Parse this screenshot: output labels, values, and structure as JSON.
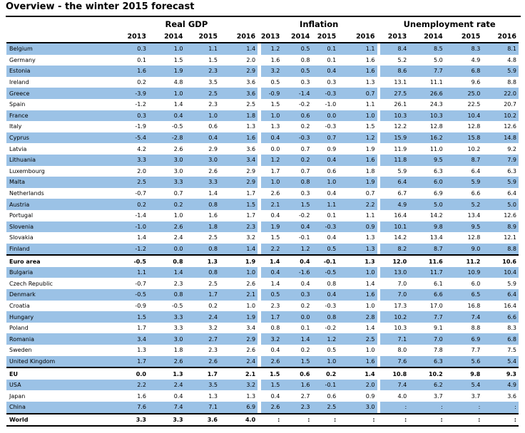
{
  "title": "Overview - the winter 2015 forecast",
  "groups": [
    "Real GDP",
    "Inflation",
    "Unemployment rate"
  ],
  "years": {
    "gdp": [
      "2013",
      "2014",
      "2015",
      "2016"
    ],
    "inflation": [
      "2013",
      "2014",
      "2015",
      "2016"
    ],
    "unemployment": [
      "2013",
      "2014",
      "2015",
      "2016"
    ]
  },
  "rows": [
    {
      "country": "Belgium",
      "style": "hl",
      "gdp": [
        "0.3",
        "1.0",
        "1.1",
        "1.4"
      ],
      "inf": [
        "1.2",
        "0.5",
        "0.1",
        "1.1"
      ],
      "unemp": [
        "8.4",
        "8.5",
        "8.3",
        "8.1"
      ]
    },
    {
      "country": "Germany",
      "style": "plain",
      "gdp": [
        "0.1",
        "1.5",
        "1.5",
        "2.0"
      ],
      "inf": [
        "1.6",
        "0.8",
        "0.1",
        "1.6"
      ],
      "unemp": [
        "5.2",
        "5.0",
        "4.9",
        "4.8"
      ]
    },
    {
      "country": "Estonia",
      "style": "hl",
      "gdp": [
        "1.6",
        "1.9",
        "2.3",
        "2.9"
      ],
      "inf": [
        "3.2",
        "0.5",
        "0.4",
        "1.6"
      ],
      "unemp": [
        "8.6",
        "7.7",
        "6.8",
        "5.9"
      ]
    },
    {
      "country": "Ireland",
      "style": "plain",
      "gdp": [
        "0.2",
        "4.8",
        "3.5",
        "3.6"
      ],
      "inf": [
        "0.5",
        "0.3",
        "0.3",
        "1.3"
      ],
      "unemp": [
        "13.1",
        "11.1",
        "9.6",
        "8.8"
      ]
    },
    {
      "country": "Greece",
      "style": "hl",
      "gdp": [
        "-3.9",
        "1.0",
        "2.5",
        "3.6"
      ],
      "inf": [
        "-0.9",
        "-1.4",
        "-0.3",
        "0.7"
      ],
      "unemp": [
        "27.5",
        "26.6",
        "25.0",
        "22.0"
      ]
    },
    {
      "country": "Spain",
      "style": "plain",
      "gdp": [
        "-1.2",
        "1.4",
        "2.3",
        "2.5"
      ],
      "inf": [
        "1.5",
        "-0.2",
        "-1.0",
        "1.1"
      ],
      "unemp": [
        "26.1",
        "24.3",
        "22.5",
        "20.7"
      ]
    },
    {
      "country": "France",
      "style": "hl",
      "gdp": [
        "0.3",
        "0.4",
        "1.0",
        "1.8"
      ],
      "inf": [
        "1.0",
        "0.6",
        "0.0",
        "1.0"
      ],
      "unemp": [
        "10.3",
        "10.3",
        "10.4",
        "10.2"
      ]
    },
    {
      "country": "Italy",
      "style": "plain",
      "gdp": [
        "-1.9",
        "-0.5",
        "0.6",
        "1.3"
      ],
      "inf": [
        "1.3",
        "0.2",
        "-0.3",
        "1.5"
      ],
      "unemp": [
        "12.2",
        "12.8",
        "12.8",
        "12.6"
      ]
    },
    {
      "country": "Cyprus",
      "style": "hl",
      "gdp": [
        "-5.4",
        "-2.8",
        "0.4",
        "1.6"
      ],
      "inf": [
        "0.4",
        "-0.3",
        "0.7",
        "1.2"
      ],
      "unemp": [
        "15.9",
        "16.2",
        "15.8",
        "14.8"
      ]
    },
    {
      "country": "Latvia",
      "style": "plain",
      "gdp": [
        "4.2",
        "2.6",
        "2.9",
        "3.6"
      ],
      "inf": [
        "0.0",
        "0.7",
        "0.9",
        "1.9"
      ],
      "unemp": [
        "11.9",
        "11.0",
        "10.2",
        "9.2"
      ]
    },
    {
      "country": "Lithuania",
      "style": "hl",
      "gdp": [
        "3.3",
        "3.0",
        "3.0",
        "3.4"
      ],
      "inf": [
        "1.2",
        "0.2",
        "0.4",
        "1.6"
      ],
      "unemp": [
        "11.8",
        "9.5",
        "8.7",
        "7.9"
      ]
    },
    {
      "country": "Luxembourg",
      "style": "plain",
      "gdp": [
        "2.0",
        "3.0",
        "2.6",
        "2.9"
      ],
      "inf": [
        "1.7",
        "0.7",
        "0.6",
        "1.8"
      ],
      "unemp": [
        "5.9",
        "6.3",
        "6.4",
        "6.3"
      ]
    },
    {
      "country": "Malta",
      "style": "hl",
      "gdp": [
        "2.5",
        "3.3",
        "3.3",
        "2.9"
      ],
      "inf": [
        "1.0",
        "0.8",
        "1.0",
        "1.9"
      ],
      "unemp": [
        "6.4",
        "6.0",
        "5.9",
        "5.9"
      ]
    },
    {
      "country": "Netherlands",
      "style": "plain",
      "gdp": [
        "-0.7",
        "0.7",
        "1.4",
        "1.7"
      ],
      "inf": [
        "2.6",
        "0.3",
        "0.4",
        "0.7"
      ],
      "unemp": [
        "6.7",
        "6.9",
        "6.6",
        "6.4"
      ]
    },
    {
      "country": "Austria",
      "style": "hl",
      "gdp": [
        "0.2",
        "0.2",
        "0.8",
        "1.5"
      ],
      "inf": [
        "2.1",
        "1.5",
        "1.1",
        "2.2"
      ],
      "unemp": [
        "4.9",
        "5.0",
        "5.2",
        "5.0"
      ]
    },
    {
      "country": "Portugal",
      "style": "plain",
      "gdp": [
        "-1.4",
        "1.0",
        "1.6",
        "1.7"
      ],
      "inf": [
        "0.4",
        "-0.2",
        "0.1",
        "1.1"
      ],
      "unemp": [
        "16.4",
        "14.2",
        "13.4",
        "12.6"
      ]
    },
    {
      "country": "Slovenia",
      "style": "hl",
      "gdp": [
        "-1.0",
        "2.6",
        "1.8",
        "2.3"
      ],
      "inf": [
        "1.9",
        "0.4",
        "-0.3",
        "0.9"
      ],
      "unemp": [
        "10.1",
        "9.8",
        "9.5",
        "8.9"
      ]
    },
    {
      "country": "Slovakia",
      "style": "plain",
      "gdp": [
        "1.4",
        "2.4",
        "2.5",
        "3.2"
      ],
      "inf": [
        "1.5",
        "-0.1",
        "0.4",
        "1.3"
      ],
      "unemp": [
        "14.2",
        "13.4",
        "12.8",
        "12.1"
      ]
    },
    {
      "country": "Finland",
      "style": "hl",
      "gdp": [
        "-1.2",
        "0.0",
        "0.8",
        "1.4"
      ],
      "inf": [
        "2.2",
        "1.2",
        "0.5",
        "1.3"
      ],
      "unemp": [
        "8.2",
        "8.7",
        "9.0",
        "8.8"
      ]
    },
    {
      "country": "Euro area",
      "style": "agg",
      "gdp": [
        "-0.5",
        "0.8",
        "1.3",
        "1.9"
      ],
      "inf": [
        "1.4",
        "0.4",
        "-0.1",
        "1.3"
      ],
      "unemp": [
        "12.0",
        "11.6",
        "11.2",
        "10.6"
      ]
    },
    {
      "country": "Bulgaria",
      "style": "hl",
      "gdp": [
        "1.1",
        "1.4",
        "0.8",
        "1.0"
      ],
      "inf": [
        "0.4",
        "-1.6",
        "-0.5",
        "1.0"
      ],
      "unemp": [
        "13.0",
        "11.7",
        "10.9",
        "10.4"
      ]
    },
    {
      "country": "Czech Republic",
      "style": "plain",
      "gdp": [
        "-0.7",
        "2.3",
        "2.5",
        "2.6"
      ],
      "inf": [
        "1.4",
        "0.4",
        "0.8",
        "1.4"
      ],
      "unemp": [
        "7.0",
        "6.1",
        "6.0",
        "5.9"
      ]
    },
    {
      "country": "Denmark",
      "style": "hl",
      "gdp": [
        "-0.5",
        "0.8",
        "1.7",
        "2.1"
      ],
      "inf": [
        "0.5",
        "0.3",
        "0.4",
        "1.6"
      ],
      "unemp": [
        "7.0",
        "6.6",
        "6.5",
        "6.4"
      ]
    },
    {
      "country": "Croatia",
      "style": "plain",
      "gdp": [
        "-0.9",
        "-0.5",
        "0.2",
        "1.0"
      ],
      "inf": [
        "2.3",
        "0.2",
        "-0.3",
        "1.0"
      ],
      "unemp": [
        "17.3",
        "17.0",
        "16.8",
        "16.4"
      ]
    },
    {
      "country": "Hungary",
      "style": "hl",
      "gdp": [
        "1.5",
        "3.3",
        "2.4",
        "1.9"
      ],
      "inf": [
        "1.7",
        "0.0",
        "0.8",
        "2.8"
      ],
      "unemp": [
        "10.2",
        "7.7",
        "7.4",
        "6.6"
      ]
    },
    {
      "country": "Poland",
      "style": "plain",
      "gdp": [
        "1.7",
        "3.3",
        "3.2",
        "3.4"
      ],
      "inf": [
        "0.8",
        "0.1",
        "-0.2",
        "1.4"
      ],
      "unemp": [
        "10.3",
        "9.1",
        "8.8",
        "8.3"
      ]
    },
    {
      "country": "Romania",
      "style": "hl",
      "gdp": [
        "3.4",
        "3.0",
        "2.7",
        "2.9"
      ],
      "inf": [
        "3.2",
        "1.4",
        "1.2",
        "2.5"
      ],
      "unemp": [
        "7.1",
        "7.0",
        "6.9",
        "6.8"
      ]
    },
    {
      "country": "Sweden",
      "style": "plain",
      "gdp": [
        "1.3",
        "1.8",
        "2.3",
        "2.6"
      ],
      "inf": [
        "0.4",
        "0.2",
        "0.5",
        "1.0"
      ],
      "unemp": [
        "8.0",
        "7.8",
        "7.7",
        "7.5"
      ]
    },
    {
      "country": "United Kingdom",
      "style": "hl",
      "gdp": [
        "1.7",
        "2.6",
        "2.6",
        "2.4"
      ],
      "inf": [
        "2.6",
        "1.5",
        "1.0",
        "1.6"
      ],
      "unemp": [
        "7.6",
        "6.3",
        "5.6",
        "5.4"
      ]
    },
    {
      "country": "EU",
      "style": "agg",
      "gdp": [
        "0.0",
        "1.3",
        "1.7",
        "2.1"
      ],
      "inf": [
        "1.5",
        "0.6",
        "0.2",
        "1.4"
      ],
      "unemp": [
        "10.8",
        "10.2",
        "9.8",
        "9.3"
      ]
    },
    {
      "country": "USA",
      "style": "hl",
      "gdp": [
        "2.2",
        "2.4",
        "3.5",
        "3.2"
      ],
      "inf": [
        "1.5",
        "1.6",
        "-0.1",
        "2.0"
      ],
      "unemp": [
        "7.4",
        "6.2",
        "5.4",
        "4.9"
      ]
    },
    {
      "country": "Japan",
      "style": "plain",
      "gdp": [
        "1.6",
        "0.4",
        "1.3",
        "1.3"
      ],
      "inf": [
        "0.4",
        "2.7",
        "0.6",
        "0.9"
      ],
      "unemp": [
        "4.0",
        "3.7",
        "3.7",
        "3.6"
      ]
    },
    {
      "country": "China",
      "style": "hl",
      "gdp": [
        "7.6",
        "7.4",
        "7.1",
        "6.9"
      ],
      "inf": [
        "2.6",
        "2.3",
        "2.5",
        "3.0"
      ],
      "unemp": [
        ":",
        ":",
        ":",
        ":"
      ]
    },
    {
      "country": "World",
      "style": "agg last",
      "gdp": [
        "3.3",
        "3.3",
        "3.6",
        "4.0"
      ],
      "inf": [
        ":",
        ":",
        ":",
        ":"
      ],
      "unemp": [
        ":",
        ":",
        ":",
        ":"
      ]
    }
  ]
}
